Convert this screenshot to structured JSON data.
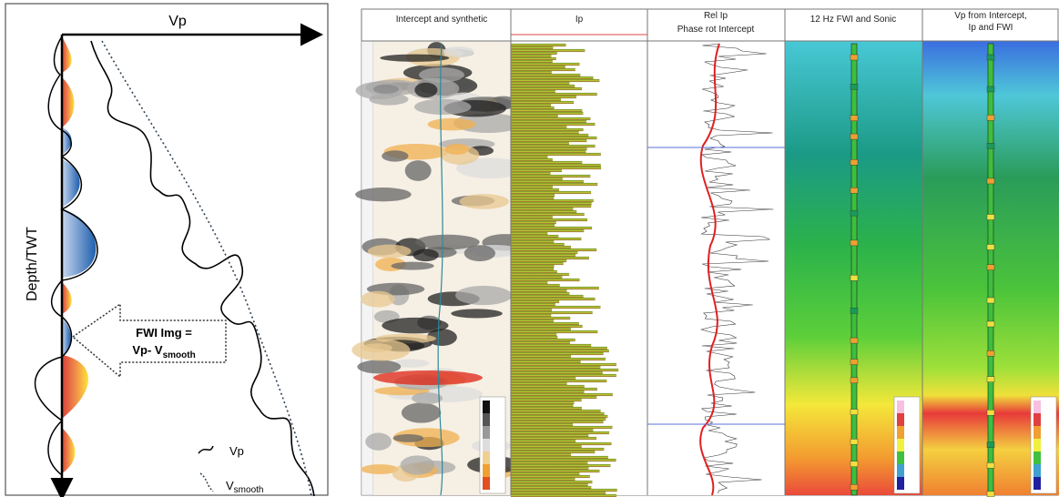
{
  "left_panel": {
    "x_axis_label": "Vp",
    "y_axis_label": "Depth/TWT",
    "callout": {
      "line1": "FWI Img =",
      "line2": "Vp- V",
      "line2_sub": "smooth"
    },
    "legend": [
      {
        "label": "Vp"
      },
      {
        "label": "V",
        "sub": "smooth"
      }
    ]
  },
  "right_panel": {
    "tracks": [
      {
        "title": "Intercept and synthetic"
      },
      {
        "title": "Ip"
      },
      {
        "title": "Rel Ip",
        "subtitle": "Phase rot Intercept"
      },
      {
        "title": "12 Hz FWI and Sonic"
      },
      {
        "title": "Vp from Intercept,",
        "title_line2": "Ip and FWI"
      }
    ]
  }
}
